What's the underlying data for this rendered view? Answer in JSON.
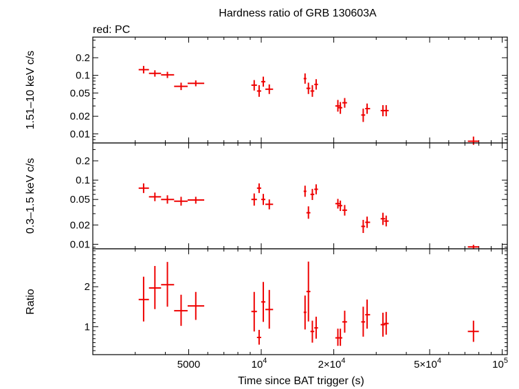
{
  "chart_data": {
    "type": "scatter",
    "title": "Hardness ratio of GRB 130603A",
    "annotation": "red: PC",
    "xlabel": "Time since BAT trigger (s)",
    "xscale": "log",
    "xlim": [
      2000,
      105000
    ],
    "x_ticks": [
      {
        "value": 5000,
        "mant": "5000",
        "exp": ""
      },
      {
        "value": 10000,
        "mant": "10",
        "exp": "4"
      },
      {
        "value": 20000,
        "mant": "2×10",
        "exp": "4"
      },
      {
        "value": 50000,
        "mant": "5×10",
        "exp": "4"
      },
      {
        "value": 100000,
        "mant": "10",
        "exp": "5"
      }
    ],
    "series_color": "#ee0000",
    "panels": [
      {
        "name": "hard",
        "ylabel": "1.51–10 keV c/s",
        "yscale": "log",
        "ylim": [
          0.007,
          0.45
        ],
        "y_ticks": [
          {
            "value": 0.2,
            "label": "0.2"
          },
          {
            "value": 0.1,
            "label": "0.1"
          },
          {
            "value": 0.05,
            "label": "0.05"
          },
          {
            "value": 0.02,
            "label": "0.02"
          },
          {
            "value": 0.01,
            "label": "0.01"
          }
        ],
        "points": [
          {
            "x": 3250,
            "xlo": 3100,
            "xhi": 3420,
            "y": 0.125,
            "ylo": 0.108,
            "yhi": 0.145
          },
          {
            "x": 3620,
            "xlo": 3420,
            "xhi": 3840,
            "y": 0.108,
            "ylo": 0.095,
            "yhi": 0.122
          },
          {
            "x": 4080,
            "xlo": 3840,
            "xhi": 4350,
            "y": 0.102,
            "ylo": 0.09,
            "yhi": 0.115
          },
          {
            "x": 4650,
            "xlo": 4350,
            "xhi": 4950,
            "y": 0.065,
            "ylo": 0.056,
            "yhi": 0.075
          },
          {
            "x": 5350,
            "xlo": 4950,
            "xhi": 5800,
            "y": 0.073,
            "ylo": 0.065,
            "yhi": 0.082
          },
          {
            "x": 9350,
            "xlo": 9100,
            "xhi": 9600,
            "y": 0.068,
            "ylo": 0.055,
            "yhi": 0.083
          },
          {
            "x": 9800,
            "xlo": 9600,
            "xhi": 10000,
            "y": 0.054,
            "ylo": 0.043,
            "yhi": 0.068
          },
          {
            "x": 10200,
            "xlo": 10000,
            "xhi": 10400,
            "y": 0.078,
            "ylo": 0.064,
            "yhi": 0.095
          },
          {
            "x": 10800,
            "xlo": 10400,
            "xhi": 11200,
            "y": 0.058,
            "ylo": 0.048,
            "yhi": 0.07
          },
          {
            "x": 15200,
            "xlo": 15000,
            "xhi": 15400,
            "y": 0.088,
            "ylo": 0.072,
            "yhi": 0.108
          },
          {
            "x": 15700,
            "xlo": 15400,
            "xhi": 16000,
            "y": 0.06,
            "ylo": 0.048,
            "yhi": 0.075
          },
          {
            "x": 16300,
            "xlo": 16000,
            "xhi": 16600,
            "y": 0.054,
            "ylo": 0.043,
            "yhi": 0.068
          },
          {
            "x": 16900,
            "xlo": 16600,
            "xhi": 17200,
            "y": 0.07,
            "ylo": 0.057,
            "yhi": 0.086
          },
          {
            "x": 20800,
            "xlo": 20300,
            "xhi": 21300,
            "y": 0.03,
            "ylo": 0.024,
            "yhi": 0.038
          },
          {
            "x": 21300,
            "xlo": 20900,
            "xhi": 21700,
            "y": 0.028,
            "ylo": 0.022,
            "yhi": 0.035
          },
          {
            "x": 22200,
            "xlo": 21700,
            "xhi": 22700,
            "y": 0.034,
            "ylo": 0.028,
            "yhi": 0.041
          },
          {
            "x": 26500,
            "xlo": 26000,
            "xhi": 27000,
            "y": 0.021,
            "ylo": 0.016,
            "yhi": 0.027
          },
          {
            "x": 27500,
            "xlo": 27000,
            "xhi": 28300,
            "y": 0.027,
            "ylo": 0.022,
            "yhi": 0.033
          },
          {
            "x": 32000,
            "xlo": 31300,
            "xhi": 32700,
            "y": 0.025,
            "ylo": 0.02,
            "yhi": 0.031
          },
          {
            "x": 33000,
            "xlo": 32300,
            "xhi": 33800,
            "y": 0.025,
            "ylo": 0.02,
            "yhi": 0.031
          },
          {
            "x": 76000,
            "xlo": 72000,
            "xhi": 80000,
            "y": 0.0075,
            "ylo": 0.0065,
            "yhi": 0.009
          }
        ]
      },
      {
        "name": "soft",
        "ylabel": "0.3–1.5 keV c/s",
        "yscale": "log",
        "ylim": [
          0.0085,
          0.38
        ],
        "y_ticks": [
          {
            "value": 0.2,
            "label": "0.2"
          },
          {
            "value": 0.1,
            "label": "0.1"
          },
          {
            "value": 0.05,
            "label": "0.05"
          },
          {
            "value": 0.02,
            "label": "0.02"
          },
          {
            "value": 0.01,
            "label": "0.01"
          }
        ],
        "points": [
          {
            "x": 3250,
            "xlo": 3100,
            "xhi": 3420,
            "y": 0.075,
            "ylo": 0.063,
            "yhi": 0.089
          },
          {
            "x": 3620,
            "xlo": 3420,
            "xhi": 3840,
            "y": 0.055,
            "ylo": 0.047,
            "yhi": 0.064
          },
          {
            "x": 4080,
            "xlo": 3840,
            "xhi": 4350,
            "y": 0.05,
            "ylo": 0.043,
            "yhi": 0.058
          },
          {
            "x": 4650,
            "xlo": 4350,
            "xhi": 4950,
            "y": 0.047,
            "ylo": 0.04,
            "yhi": 0.055
          },
          {
            "x": 5350,
            "xlo": 4950,
            "xhi": 5800,
            "y": 0.049,
            "ylo": 0.043,
            "yhi": 0.055
          },
          {
            "x": 9350,
            "xlo": 9100,
            "xhi": 9600,
            "y": 0.05,
            "ylo": 0.04,
            "yhi": 0.062
          },
          {
            "x": 9800,
            "xlo": 9600,
            "xhi": 10000,
            "y": 0.075,
            "ylo": 0.063,
            "yhi": 0.089
          },
          {
            "x": 10200,
            "xlo": 10000,
            "xhi": 10400,
            "y": 0.05,
            "ylo": 0.041,
            "yhi": 0.061
          },
          {
            "x": 10800,
            "xlo": 10400,
            "xhi": 11200,
            "y": 0.042,
            "ylo": 0.035,
            "yhi": 0.05
          },
          {
            "x": 15200,
            "xlo": 15000,
            "xhi": 15400,
            "y": 0.067,
            "ylo": 0.055,
            "yhi": 0.082
          },
          {
            "x": 15700,
            "xlo": 15400,
            "xhi": 16000,
            "y": 0.031,
            "ylo": 0.025,
            "yhi": 0.039
          },
          {
            "x": 16300,
            "xlo": 16000,
            "xhi": 16600,
            "y": 0.06,
            "ylo": 0.049,
            "yhi": 0.073
          },
          {
            "x": 16900,
            "xlo": 16600,
            "xhi": 17200,
            "y": 0.072,
            "ylo": 0.06,
            "yhi": 0.086
          },
          {
            "x": 20800,
            "xlo": 20300,
            "xhi": 21300,
            "y": 0.043,
            "ylo": 0.036,
            "yhi": 0.051
          },
          {
            "x": 21300,
            "xlo": 20900,
            "xhi": 21700,
            "y": 0.04,
            "ylo": 0.033,
            "yhi": 0.048
          },
          {
            "x": 22200,
            "xlo": 21700,
            "xhi": 22700,
            "y": 0.034,
            "ylo": 0.028,
            "yhi": 0.041
          },
          {
            "x": 26500,
            "xlo": 26000,
            "xhi": 27000,
            "y": 0.019,
            "ylo": 0.015,
            "yhi": 0.024
          },
          {
            "x": 27500,
            "xlo": 27000,
            "xhi": 28300,
            "y": 0.022,
            "ylo": 0.018,
            "yhi": 0.027
          },
          {
            "x": 32000,
            "xlo": 31300,
            "xhi": 32700,
            "y": 0.025,
            "ylo": 0.02,
            "yhi": 0.031
          },
          {
            "x": 33000,
            "xlo": 32300,
            "xhi": 33800,
            "y": 0.023,
            "ylo": 0.019,
            "yhi": 0.028
          },
          {
            "x": 76000,
            "xlo": 72000,
            "xhi": 80000,
            "y": 0.0091,
            "ylo": 0.0085,
            "yhi": 0.0098
          }
        ]
      },
      {
        "name": "ratio",
        "ylabel": "Ratio",
        "yscale": "linear",
        "ylim": [
          0.3,
          2.95
        ],
        "y_ticks": [
          {
            "value": 2,
            "label": "2"
          },
          {
            "value": 1,
            "label": "1"
          }
        ],
        "points": [
          {
            "x": 3250,
            "xlo": 3100,
            "xhi": 3420,
            "y": 1.68,
            "ylo": 1.13,
            "yhi": 2.25
          },
          {
            "x": 3620,
            "xlo": 3420,
            "xhi": 3840,
            "y": 1.97,
            "ylo": 1.44,
            "yhi": 2.52
          },
          {
            "x": 4080,
            "xlo": 3840,
            "xhi": 4350,
            "y": 2.05,
            "ylo": 1.5,
            "yhi": 2.62
          },
          {
            "x": 4650,
            "xlo": 4350,
            "xhi": 4950,
            "y": 1.4,
            "ylo": 1.02,
            "yhi": 1.8
          },
          {
            "x": 5350,
            "xlo": 4950,
            "xhi": 5800,
            "y": 1.52,
            "ylo": 1.17,
            "yhi": 1.87
          },
          {
            "x": 9350,
            "xlo": 9100,
            "xhi": 9600,
            "y": 1.38,
            "ylo": 0.88,
            "yhi": 1.87
          },
          {
            "x": 9800,
            "xlo": 9600,
            "xhi": 10000,
            "y": 0.73,
            "ylo": 0.55,
            "yhi": 0.92
          },
          {
            "x": 10200,
            "xlo": 10000,
            "xhi": 10400,
            "y": 1.62,
            "ylo": 1.12,
            "yhi": 2.12
          },
          {
            "x": 10800,
            "xlo": 10400,
            "xhi": 11200,
            "y": 1.43,
            "ylo": 0.95,
            "yhi": 1.92
          },
          {
            "x": 15200,
            "xlo": 15000,
            "xhi": 15400,
            "y": 1.36,
            "ylo": 0.93,
            "yhi": 1.78
          },
          {
            "x": 15700,
            "xlo": 15400,
            "xhi": 16000,
            "y": 1.88,
            "ylo": 1.13,
            "yhi": 2.63
          },
          {
            "x": 16300,
            "xlo": 16000,
            "xhi": 16600,
            "y": 0.88,
            "ylo": 0.6,
            "yhi": 1.15
          },
          {
            "x": 16900,
            "xlo": 16600,
            "xhi": 17200,
            "y": 0.97,
            "ylo": 0.7,
            "yhi": 1.25
          },
          {
            "x": 20800,
            "xlo": 20300,
            "xhi": 21300,
            "y": 0.72,
            "ylo": 0.52,
            "yhi": 0.95
          },
          {
            "x": 21300,
            "xlo": 20900,
            "xhi": 21700,
            "y": 0.72,
            "ylo": 0.52,
            "yhi": 0.95
          },
          {
            "x": 22200,
            "xlo": 21700,
            "xhi": 22700,
            "y": 1.12,
            "ylo": 0.85,
            "yhi": 1.4
          },
          {
            "x": 26500,
            "xlo": 26000,
            "xhi": 27000,
            "y": 1.12,
            "ylo": 0.75,
            "yhi": 1.5
          },
          {
            "x": 27500,
            "xlo": 27000,
            "xhi": 28300,
            "y": 1.3,
            "ylo": 0.95,
            "yhi": 1.68
          },
          {
            "x": 32000,
            "xlo": 31300,
            "xhi": 32700,
            "y": 1.05,
            "ylo": 0.75,
            "yhi": 1.35
          },
          {
            "x": 33000,
            "xlo": 32300,
            "xhi": 33800,
            "y": 1.08,
            "ylo": 0.8,
            "yhi": 1.37
          },
          {
            "x": 76000,
            "xlo": 72000,
            "xhi": 80000,
            "y": 0.88,
            "ylo": 0.62,
            "yhi": 1.15
          }
        ]
      }
    ]
  }
}
